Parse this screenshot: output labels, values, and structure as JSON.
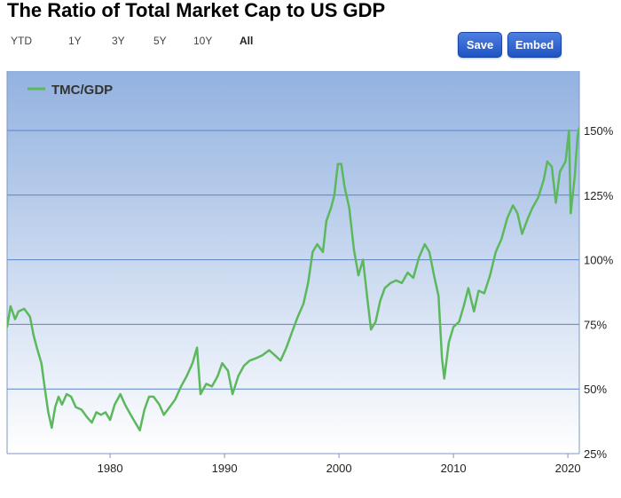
{
  "title": "The Ratio of Total Market Cap to US GDP",
  "range_selector": {
    "buttons": [
      "YTD",
      "1Y",
      "3Y",
      "5Y",
      "10Y",
      "All"
    ],
    "active": "All"
  },
  "actions": {
    "save_label": "Save",
    "embed_label": "Embed"
  },
  "colors": {
    "line": "#5cb85c",
    "plot_top": "#93b2e0",
    "plot_bottom": "#ffffff",
    "grid": "#5b82c8",
    "action_button": "#2f66d3"
  },
  "chart_data": {
    "type": "line",
    "title": "The Ratio of Total Market Cap to US GDP",
    "xlabel": "",
    "ylabel": "",
    "x_ticks": [
      1980,
      1990,
      2000,
      2010,
      2020
    ],
    "y_ticks": [
      25,
      50,
      75,
      100,
      125,
      150
    ],
    "y_tick_labels": [
      "25%",
      "50%",
      "75%",
      "100%",
      "125%",
      "150%"
    ],
    "xlim": [
      1971,
      2021
    ],
    "ylim": [
      25,
      173
    ],
    "grid": true,
    "legend_position": "top-left",
    "series": [
      {
        "name": "TMC/GDP",
        "points": [
          [
            1971.0,
            74
          ],
          [
            1971.3,
            82
          ],
          [
            1971.7,
            77
          ],
          [
            1972.0,
            80
          ],
          [
            1972.5,
            81
          ],
          [
            1973.0,
            78
          ],
          [
            1973.3,
            71
          ],
          [
            1973.6,
            66
          ],
          [
            1974.0,
            60
          ],
          [
            1974.3,
            50
          ],
          [
            1974.6,
            41
          ],
          [
            1974.9,
            35
          ],
          [
            1975.2,
            43
          ],
          [
            1975.5,
            47
          ],
          [
            1975.8,
            44
          ],
          [
            1976.2,
            48
          ],
          [
            1976.6,
            47
          ],
          [
            1977.0,
            43
          ],
          [
            1977.5,
            42
          ],
          [
            1978.0,
            39
          ],
          [
            1978.4,
            37
          ],
          [
            1978.8,
            41
          ],
          [
            1979.2,
            40
          ],
          [
            1979.6,
            41
          ],
          [
            1980.0,
            38
          ],
          [
            1980.4,
            44
          ],
          [
            1980.9,
            48
          ],
          [
            1981.3,
            44
          ],
          [
            1981.8,
            40
          ],
          [
            1982.2,
            37
          ],
          [
            1982.6,
            34
          ],
          [
            1983.0,
            42
          ],
          [
            1983.4,
            47
          ],
          [
            1983.8,
            47
          ],
          [
            1984.3,
            44
          ],
          [
            1984.7,
            40
          ],
          [
            1985.2,
            43
          ],
          [
            1985.7,
            46
          ],
          [
            1986.2,
            51
          ],
          [
            1986.7,
            55
          ],
          [
            1987.2,
            60
          ],
          [
            1987.6,
            66
          ],
          [
            1987.9,
            48
          ],
          [
            1988.4,
            52
          ],
          [
            1988.9,
            51
          ],
          [
            1989.4,
            55
          ],
          [
            1989.8,
            60
          ],
          [
            1990.3,
            57
          ],
          [
            1990.7,
            48
          ],
          [
            1991.2,
            55
          ],
          [
            1991.7,
            59
          ],
          [
            1992.2,
            61
          ],
          [
            1992.8,
            62
          ],
          [
            1993.3,
            63
          ],
          [
            1993.9,
            65
          ],
          [
            1994.4,
            63
          ],
          [
            1994.9,
            61
          ],
          [
            1995.4,
            66
          ],
          [
            1995.9,
            72
          ],
          [
            1996.4,
            78
          ],
          [
            1996.9,
            83
          ],
          [
            1997.3,
            91
          ],
          [
            1997.7,
            103
          ],
          [
            1998.1,
            106
          ],
          [
            1998.6,
            103
          ],
          [
            1998.9,
            115
          ],
          [
            1999.3,
            120
          ],
          [
            1999.6,
            125
          ],
          [
            1999.9,
            137
          ],
          [
            2000.2,
            137
          ],
          [
            2000.5,
            128
          ],
          [
            2000.9,
            120
          ],
          [
            2001.3,
            104
          ],
          [
            2001.7,
            94
          ],
          [
            2002.1,
            100
          ],
          [
            2002.5,
            84
          ],
          [
            2002.8,
            73
          ],
          [
            2003.2,
            76
          ],
          [
            2003.6,
            84
          ],
          [
            2004.0,
            89
          ],
          [
            2004.5,
            91
          ],
          [
            2005.0,
            92
          ],
          [
            2005.5,
            91
          ],
          [
            2006.0,
            95
          ],
          [
            2006.5,
            93
          ],
          [
            2007.0,
            101
          ],
          [
            2007.5,
            106
          ],
          [
            2007.9,
            103
          ],
          [
            2008.3,
            94
          ],
          [
            2008.7,
            86
          ],
          [
            2009.0,
            62
          ],
          [
            2009.2,
            54
          ],
          [
            2009.6,
            68
          ],
          [
            2010.0,
            74
          ],
          [
            2010.5,
            76
          ],
          [
            2010.9,
            82
          ],
          [
            2011.3,
            89
          ],
          [
            2011.8,
            80
          ],
          [
            2012.2,
            88
          ],
          [
            2012.7,
            87
          ],
          [
            2013.2,
            94
          ],
          [
            2013.7,
            103
          ],
          [
            2014.2,
            108
          ],
          [
            2014.7,
            116
          ],
          [
            2015.2,
            121
          ],
          [
            2015.6,
            118
          ],
          [
            2016.0,
            110
          ],
          [
            2016.5,
            116
          ],
          [
            2016.9,
            120
          ],
          [
            2017.4,
            124
          ],
          [
            2017.9,
            131
          ],
          [
            2018.2,
            138
          ],
          [
            2018.6,
            136
          ],
          [
            2018.95,
            122
          ],
          [
            2019.3,
            134
          ],
          [
            2019.8,
            138
          ],
          [
            2020.1,
            150
          ],
          [
            2020.25,
            118
          ],
          [
            2020.6,
            132
          ],
          [
            2020.85,
            148
          ],
          [
            2021.0,
            151
          ]
        ]
      }
    ]
  }
}
